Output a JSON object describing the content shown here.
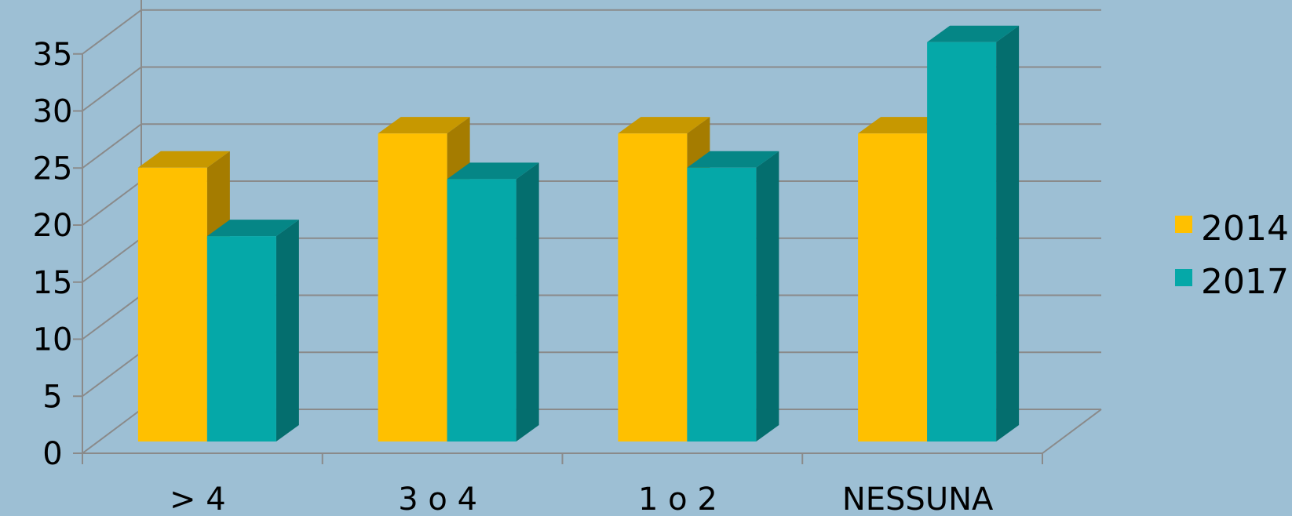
{
  "chart_data": {
    "type": "bar",
    "subtype": "3d-clustered-column",
    "categories": [
      "> 4",
      "3 o 4",
      "1 o 2",
      "NESSUNA"
    ],
    "series": [
      {
        "name": "2014",
        "values": [
          24,
          27,
          27,
          27
        ],
        "color": "#ffc000",
        "side_color": "#a57c00",
        "top_color": "#c79800"
      },
      {
        "name": "2017",
        "values": [
          18,
          23,
          24,
          35
        ],
        "color": "#05a8a8",
        "side_color": "#046e6e",
        "top_color": "#058686"
      }
    ],
    "y_ticks": [
      "0",
      "5",
      "10",
      "15",
      "20",
      "25",
      "30",
      "35"
    ],
    "ylim": [
      0,
      35
    ],
    "grid": true,
    "legend_position": "right",
    "colors": {
      "background": "#9dbfd4",
      "grid": "#8a8a8a"
    }
  }
}
